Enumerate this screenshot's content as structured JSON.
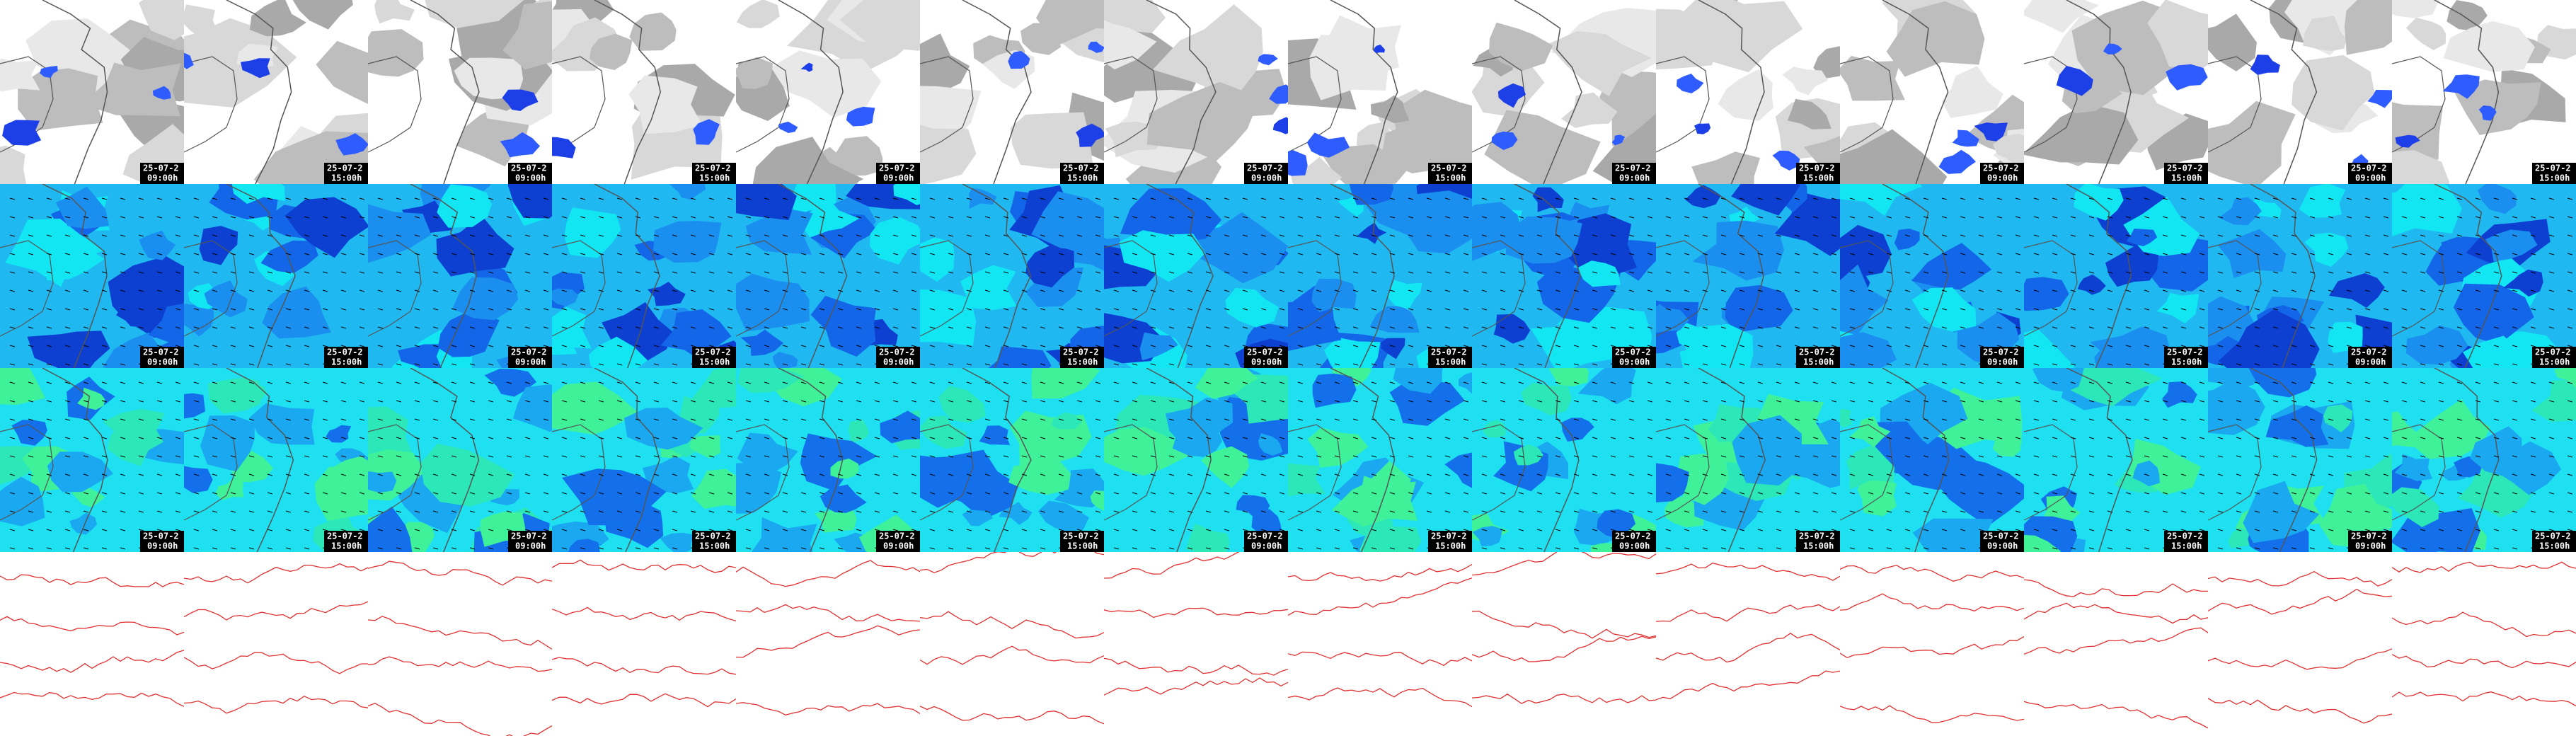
{
  "columns": [
    {
      "date": "25-07-2",
      "time": "09:00h"
    },
    {
      "date": "25-07-2",
      "time": "15:00h"
    },
    {
      "date": "25-07-2",
      "time": "09:00h"
    },
    {
      "date": "25-07-2",
      "time": "15:00h"
    },
    {
      "date": "25-07-2",
      "time": "09:00h"
    },
    {
      "date": "25-07-2",
      "time": "15:00h"
    },
    {
      "date": "25-07-2",
      "time": "09:00h"
    },
    {
      "date": "25-07-2",
      "time": "15:00h"
    },
    {
      "date": "25-07-2",
      "time": "09:00h"
    },
    {
      "date": "25-07-2",
      "time": "15:00h"
    },
    {
      "date": "25-07-2",
      "time": "09:00h"
    },
    {
      "date": "25-07-2",
      "time": "15:00h"
    },
    {
      "date": "25-07-2",
      "time": "09:00h"
    },
    {
      "date": "25-07-2",
      "time": "15:00h"
    }
  ]
}
